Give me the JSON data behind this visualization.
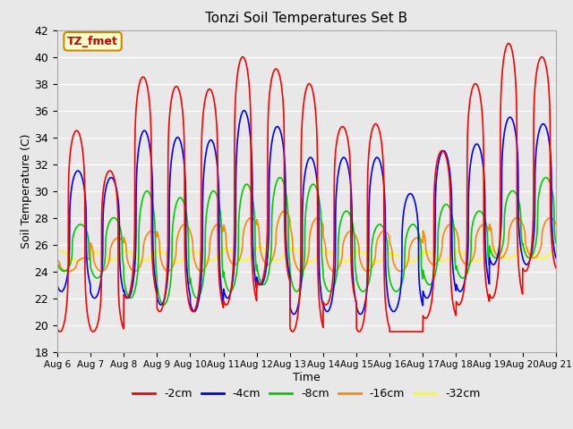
{
  "title": "Tonzi Soil Temperatures Set B",
  "xlabel": "Time",
  "ylabel": "Soil Temperature (C)",
  "ylim": [
    18,
    42
  ],
  "xlim": [
    0,
    15
  ],
  "xtick_labels": [
    "Aug 6",
    "Aug 7",
    "Aug 8",
    "Aug 9",
    "Aug 10",
    "Aug 11",
    "Aug 12",
    "Aug 13",
    "Aug 14",
    "Aug 15",
    "Aug 16",
    "Aug 17",
    "Aug 18",
    "Aug 19",
    "Aug 20",
    "Aug 21"
  ],
  "annotation_text": "TZ_fmet",
  "annotation_bg": "#ffffcc",
  "annotation_border": "#cc8800",
  "annotation_text_color": "#cc0000",
  "plot_bg": "#e8e8e8",
  "series": {
    "cm2": {
      "label": "-2cm",
      "color": "#ff0000",
      "lw": 1.2
    },
    "cm4": {
      "label": "-4cm",
      "color": "#0000ff",
      "lw": 1.2
    },
    "cm8": {
      "label": "-8cm",
      "color": "#00cc00",
      "lw": 1.2
    },
    "cm16": {
      "label": "-16cm",
      "color": "#ff8800",
      "lw": 1.2
    },
    "cm32": {
      "label": "-32cm",
      "color": "#ffff00",
      "lw": 1.2
    }
  },
  "depths": {
    "cm2": {
      "base": 26.5,
      "amp": 9.0,
      "phase": 0.0,
      "sharpness": 4.0,
      "day_peaks": [
        34.5,
        31.5,
        38.5,
        37.8,
        37.6,
        40.0,
        39.1,
        38.0,
        34.8,
        35.0,
        19.5,
        33.0,
        38.0,
        41.0,
        40.0
      ],
      "day_troughs": [
        19.5,
        19.5,
        22.0,
        21.0,
        21.0,
        21.5,
        23.0,
        19.5,
        21.5,
        19.5,
        19.5,
        20.5,
        21.5,
        22.0,
        24.0
      ]
    },
    "cm4": {
      "base": 27.0,
      "amp": 6.5,
      "phase": 0.04,
      "sharpness": 3.0,
      "day_peaks": [
        31.5,
        31.0,
        34.5,
        34.0,
        33.8,
        36.0,
        34.8,
        32.5,
        32.5,
        32.5,
        29.8,
        33.0,
        33.5,
        35.5,
        35.0
      ],
      "day_troughs": [
        22.5,
        22.0,
        22.0,
        21.5,
        21.0,
        22.0,
        23.0,
        20.8,
        21.0,
        20.8,
        21.0,
        22.0,
        22.5,
        24.5,
        24.5
      ]
    },
    "cm8": {
      "base": 26.5,
      "amp": 3.5,
      "phase": 0.12,
      "sharpness": 2.5,
      "day_peaks": [
        27.5,
        28.0,
        30.0,
        29.5,
        30.0,
        30.5,
        31.0,
        30.5,
        28.5,
        27.5,
        27.5,
        29.0,
        28.5,
        30.0,
        31.0
      ],
      "day_troughs": [
        24.0,
        23.5,
        22.0,
        21.5,
        22.0,
        22.5,
        23.0,
        22.5,
        22.5,
        22.5,
        22.5,
        23.0,
        23.5,
        25.0,
        25.0
      ]
    },
    "cm16": {
      "base": 26.0,
      "amp": 2.0,
      "phase": 0.25,
      "sharpness": 2.0,
      "day_peaks": [
        25.0,
        26.5,
        27.0,
        27.5,
        27.5,
        28.0,
        28.5,
        28.0,
        27.0,
        27.0,
        26.5,
        27.5,
        27.5,
        28.0,
        28.0
      ],
      "day_troughs": [
        24.0,
        24.0,
        24.0,
        24.0,
        24.0,
        24.5,
        24.5,
        24.0,
        24.0,
        24.0,
        24.0,
        24.5,
        24.5,
        25.0,
        25.0
      ]
    },
    "cm32": {
      "base": 25.2,
      "amp": 0.6,
      "phase": 0.5,
      "sharpness": 1.5,
      "day_peaks": [
        25.5,
        25.5,
        25.5,
        25.5,
        25.5,
        25.7,
        25.8,
        25.7,
        25.5,
        25.5,
        25.3,
        25.5,
        25.5,
        25.7,
        25.7
      ],
      "day_troughs": [
        24.8,
        24.8,
        24.8,
        24.7,
        24.8,
        24.8,
        24.8,
        24.7,
        24.7,
        24.7,
        24.7,
        24.8,
        24.8,
        25.0,
        25.0
      ]
    }
  }
}
